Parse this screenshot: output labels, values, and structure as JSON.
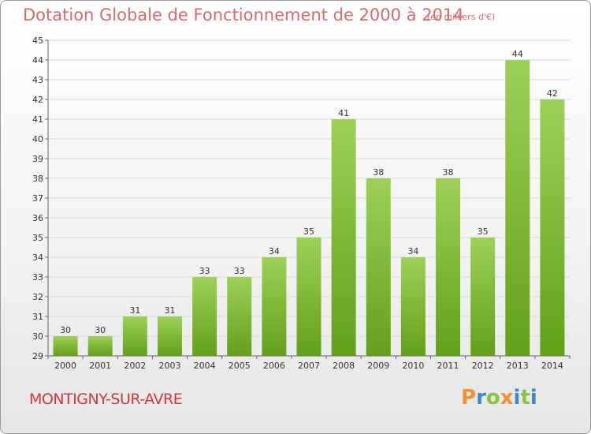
{
  "header": {
    "title": "Dotation Globale de Fonctionnement de 2000 à 2014",
    "unit": "(en milliers d'€)"
  },
  "footer": {
    "commune": "MONTIGNY-SUR-AVRE",
    "logo": "Proxiti"
  },
  "colors": {
    "bar_light": "#9dd158",
    "bar_dark": "#62a01a",
    "title": "#d86a6a",
    "commune": "#cc3b3b",
    "grid": "#d9d9d9",
    "logo_letters": [
      "#f3912e",
      "#3b89c9",
      "#8ac33f",
      "#f3912e",
      "#3b89c9",
      "#8ac33f",
      "#3b89c9"
    ]
  },
  "chart_data": {
    "type": "bar",
    "title": "Dotation Globale de Fonctionnement de 2000 à 2014",
    "subtitle": "(en milliers d'€)",
    "xlabel": "",
    "ylabel": "",
    "ylim": [
      29,
      45
    ],
    "yticks": [
      29,
      30,
      31,
      32,
      33,
      34,
      35,
      36,
      37,
      38,
      39,
      40,
      41,
      42,
      43,
      44,
      45
    ],
    "grid": true,
    "categories": [
      "2000",
      "2001",
      "2002",
      "2003",
      "2004",
      "2005",
      "2006",
      "2007",
      "2008",
      "2009",
      "2010",
      "2011",
      "2012",
      "2013",
      "2014"
    ],
    "values": [
      30,
      30,
      31,
      31,
      33,
      33,
      34,
      35,
      41,
      38,
      34,
      38,
      35,
      44,
      42
    ]
  }
}
